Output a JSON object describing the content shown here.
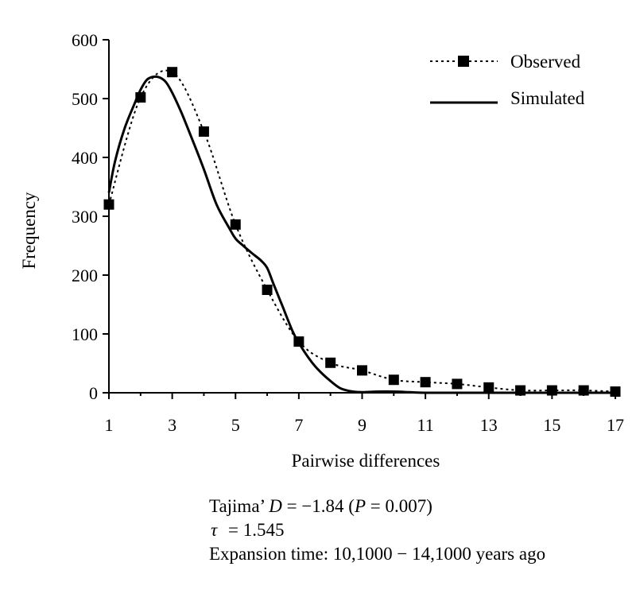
{
  "chart_data": {
    "type": "line",
    "xlabel": "Pairwise differences",
    "ylabel": "Frequency",
    "xlim": [
      1,
      17
    ],
    "ylim": [
      0,
      600
    ],
    "xticks": [
      1,
      3,
      5,
      7,
      9,
      11,
      13,
      15,
      17
    ],
    "yticks": [
      0,
      100,
      200,
      300,
      400,
      500,
      600
    ],
    "grid": false,
    "legend_position": "top-right",
    "series": [
      {
        "name": "Observed",
        "style": "dotted-line-with-square-markers",
        "x": [
          1,
          2,
          3,
          4,
          5,
          6,
          7,
          8,
          9,
          10,
          11,
          12,
          13,
          14,
          15,
          16,
          17
        ],
        "y": [
          320,
          502,
          545,
          444,
          286,
          175,
          87,
          51,
          38,
          22,
          18,
          15,
          9,
          4,
          4,
          4,
          2
        ]
      },
      {
        "name": "Simulated",
        "style": "solid-line",
        "x": [
          1,
          1.2,
          1.5,
          1.8,
          2.0,
          2.2,
          2.4,
          2.6,
          2.8,
          3.0,
          3.3,
          3.6,
          4.0,
          4.4,
          4.8,
          5.0,
          5.2,
          5.5,
          5.8,
          6.0,
          6.2,
          6.5,
          6.8,
          7.0,
          7.3,
          7.6,
          8.0,
          8.3,
          8.6,
          9.0,
          9.5,
          10.0,
          10.5,
          11.0,
          12.0,
          13.0,
          14.0,
          15.0,
          16.0,
          17.0
        ],
        "y": [
          340,
          395,
          450,
          490,
          515,
          532,
          537,
          536,
          528,
          510,
          475,
          435,
          380,
          320,
          280,
          262,
          252,
          238,
          225,
          212,
          185,
          145,
          105,
          85,
          60,
          40,
          20,
          8,
          3,
          1,
          2,
          2,
          1,
          0,
          0,
          0,
          0,
          0,
          0,
          0
        ]
      }
    ]
  },
  "stats": {
    "line1": {
      "prefix": "Tajima’ ",
      "d_symbol": "D",
      "d_value": " = −1.84 (",
      "p_symbol": "P",
      "p_value": " = 0.007)"
    },
    "line2": {
      "tau_symbol": "τ",
      "tau_value": " = 1.545"
    },
    "line3": "Expansion time: 10,1000 − 14,1000 years ago"
  },
  "colors": {
    "axis": "#000000",
    "line": "#000000",
    "background": "#ffffff"
  }
}
